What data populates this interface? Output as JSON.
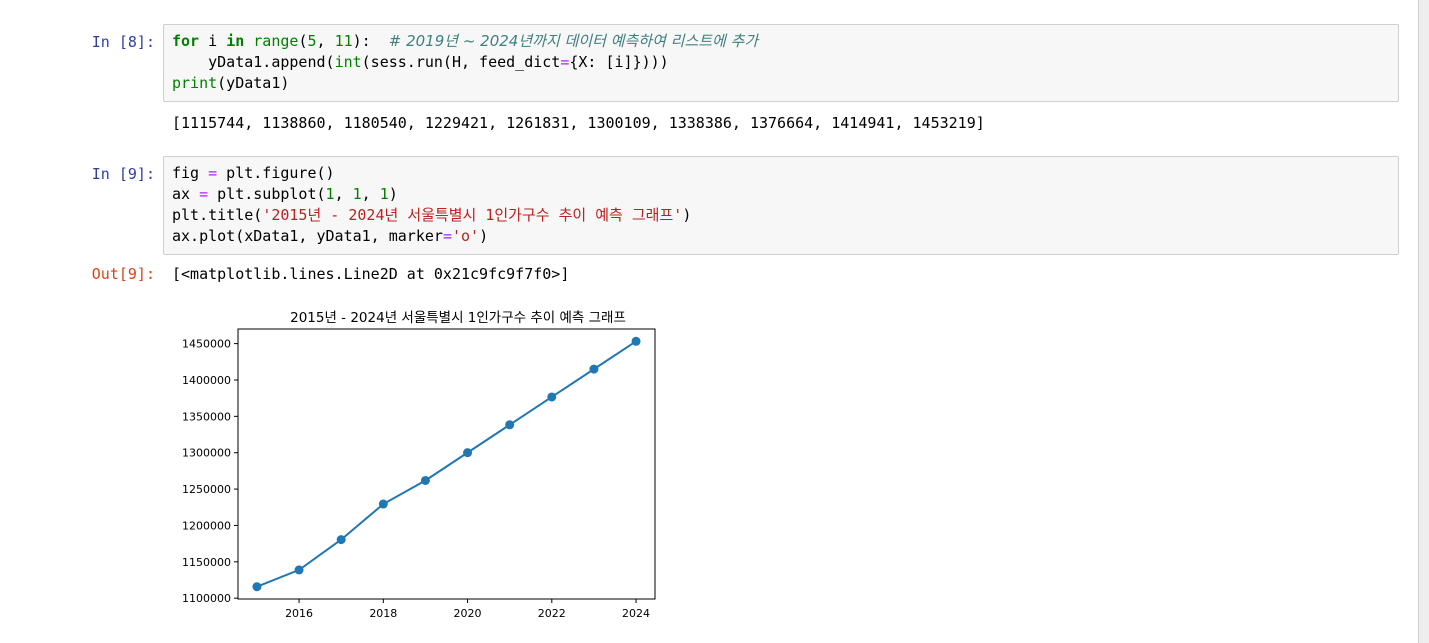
{
  "cells": [
    {
      "prompt": "In [8]:",
      "lines": [
        [
          {
            "t": "for",
            "c": "kw"
          },
          {
            "t": " i ",
            "c": ""
          },
          {
            "t": "in",
            "c": "kw"
          },
          {
            "t": " ",
            "c": ""
          },
          {
            "t": "range",
            "c": "bi"
          },
          {
            "t": "(",
            "c": ""
          },
          {
            "t": "5",
            "c": "num"
          },
          {
            "t": ", ",
            "c": ""
          },
          {
            "t": "11",
            "c": "num"
          },
          {
            "t": "):  ",
            "c": ""
          },
          {
            "t": "# 2019년 ~ 2024년까지 데이터 예측하여 리스트에 추가",
            "c": "cmt"
          }
        ],
        [
          {
            "t": "    yData1.append(",
            "c": ""
          },
          {
            "t": "int",
            "c": "bi"
          },
          {
            "t": "(sess.run(H, feed_dict",
            "c": ""
          },
          {
            "t": "=",
            "c": "op"
          },
          {
            "t": "{X: [i]})))",
            "c": ""
          }
        ],
        [
          {
            "t": "print",
            "c": "bi"
          },
          {
            "t": "(yData1)",
            "c": ""
          }
        ]
      ],
      "output": "[1115744, 1138860, 1180540, 1229421, 1261831, 1300109, 1338386, 1376664, 1414941, 1453219]"
    },
    {
      "prompt": "In [9]:",
      "lines": [
        [
          {
            "t": "fig ",
            "c": ""
          },
          {
            "t": "=",
            "c": "op"
          },
          {
            "t": " plt.figure()",
            "c": ""
          }
        ],
        [
          {
            "t": "ax ",
            "c": ""
          },
          {
            "t": "=",
            "c": "op"
          },
          {
            "t": " plt.subplot(",
            "c": ""
          },
          {
            "t": "1",
            "c": "num"
          },
          {
            "t": ", ",
            "c": ""
          },
          {
            "t": "1",
            "c": "num"
          },
          {
            "t": ", ",
            "c": ""
          },
          {
            "t": "1",
            "c": "num"
          },
          {
            "t": ")",
            "c": ""
          }
        ],
        [
          {
            "t": "plt.title(",
            "c": ""
          },
          {
            "t": "'2015년 - 2024년 서울특별시 1인가구수 추이 예측 그래프'",
            "c": "str"
          },
          {
            "t": ")",
            "c": ""
          }
        ],
        [
          {
            "t": "ax.plot(xData1, yData1, marker",
            "c": ""
          },
          {
            "t": "=",
            "c": "op"
          },
          {
            "t": "'o'",
            "c": "str"
          },
          {
            "t": ")",
            "c": ""
          }
        ]
      ],
      "out_prompt": "Out[9]:",
      "output": "[<matplotlib.lines.Line2D at 0x21c9fc9f7f0>]"
    }
  ],
  "chart_data": {
    "type": "line",
    "title": "2015년 - 2024년 서울특별시 1인가구수 추이 예측 그래프",
    "xlabel": "",
    "ylabel": "",
    "x": [
      2015,
      2016,
      2017,
      2018,
      2019,
      2020,
      2021,
      2022,
      2023,
      2024
    ],
    "series": [
      {
        "values": [
          1115744,
          1138860,
          1180540,
          1229421,
          1261831,
          1300109,
          1338386,
          1376664,
          1414941,
          1453219
        ],
        "marker": "o",
        "color": "#1f77b4"
      }
    ],
    "xticks": [
      2016,
      2018,
      2020,
      2022,
      2024
    ],
    "yticks": [
      1100000,
      1150000,
      1200000,
      1250000,
      1300000,
      1350000,
      1400000,
      1450000
    ],
    "xlim": [
      2014.55,
      2024.45
    ],
    "ylim": [
      1098870,
      1470093
    ],
    "grid": false
  }
}
